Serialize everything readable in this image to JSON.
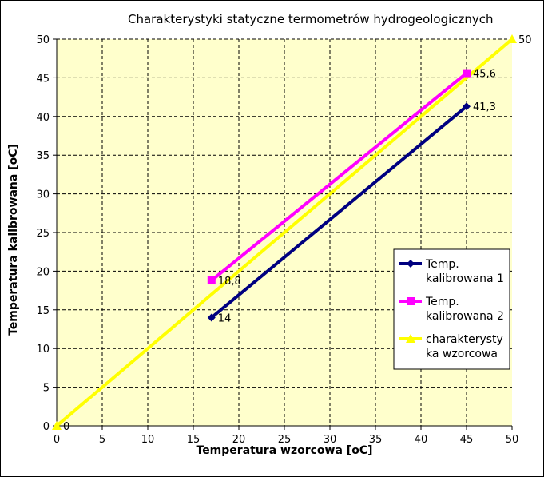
{
  "chart_data": {
    "type": "line",
    "title": "Charakterystyki statyczne termometrów hydrogeologicznych",
    "xlabel": "Temperatura wzorcowa [oC]",
    "ylabel": "Temperatura kalibrowana  [oC]",
    "xlim": [
      0,
      50
    ],
    "ylim": [
      0,
      50
    ],
    "xticks": [
      "0",
      "5",
      "10",
      "15",
      "20",
      "25",
      "30",
      "35",
      "40",
      "45",
      "50"
    ],
    "yticks": [
      "0",
      "5",
      "10",
      "15",
      "20",
      "25",
      "30",
      "35",
      "40",
      "45",
      "50"
    ],
    "grid": true,
    "legend_position": "right",
    "plot_background": "#ffffcc",
    "series": [
      {
        "name": "Temp. kalibrowana 1",
        "legend_lines": [
          "Temp.",
          "kalibrowana 1"
        ],
        "color": "#000080",
        "marker": "diamond",
        "points": [
          [
            17,
            14
          ],
          [
            45,
            41.3
          ]
        ],
        "labels": [
          "14",
          "41,3"
        ]
      },
      {
        "name": "Temp. kalibrowana 2",
        "legend_lines": [
          "Temp.",
          "kalibrowana 2"
        ],
        "color": "#ff00ff",
        "marker": "square",
        "points": [
          [
            17,
            18.8
          ],
          [
            45,
            45.6
          ]
        ],
        "labels": [
          "18,8",
          "45,6"
        ]
      },
      {
        "name": "charakterystyka wzorcowa",
        "legend_lines": [
          "charakterysty",
          "ka wzorcowa"
        ],
        "color": "#ffff00",
        "marker": "triangle",
        "points": [
          [
            0,
            0
          ],
          [
            50,
            50
          ]
        ],
        "labels": [
          "0",
          "50"
        ]
      }
    ]
  }
}
